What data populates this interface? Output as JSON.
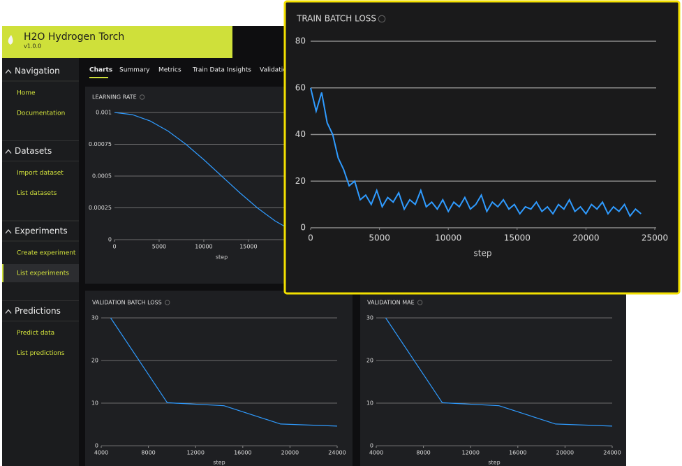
{
  "app": {
    "title": "H2O Hydrogen Torch",
    "version": "v1.0.0"
  },
  "sidebar": [
    {
      "heading": "Navigation",
      "items": [
        "Home",
        "Documentation"
      ]
    },
    {
      "heading": "Datasets",
      "items": [
        "Import dataset",
        "List datasets"
      ]
    },
    {
      "heading": "Experiments",
      "items": [
        "Create experiment",
        "List experiments"
      ]
    },
    {
      "heading": "Predictions",
      "items": [
        "Predict data",
        "List predictions"
      ]
    }
  ],
  "tabs": [
    "Charts",
    "Summary",
    "Metrics",
    "Train Data Insights",
    "Validation"
  ],
  "chart_data": [
    {
      "type": "line",
      "title": "LEARNING RATE",
      "x_label": "step",
      "color": "#2f9bff",
      "x": [
        0,
        2000,
        4000,
        6000,
        8000,
        10000,
        12000,
        14000,
        16000,
        18000,
        20000,
        22000,
        24000
      ],
      "values": [
        0.001,
        0.000983,
        0.000933,
        0.000854,
        0.00075,
        0.000629,
        0.0005,
        0.000371,
        0.00025,
        0.000146,
        6.7e-05,
        1.7e-05,
        0
      ],
      "xlim": [
        0,
        24000
      ],
      "ylim": [
        0,
        0.001
      ],
      "xticks": [
        0,
        5000,
        10000,
        15000
      ],
      "yticks": [
        0,
        0.00025,
        0.0005,
        0.00075,
        0.001
      ]
    },
    {
      "type": "line",
      "title": "TRAIN BATCH LOSS",
      "x_label": "step",
      "color": "#2f9bff",
      "x": [
        0,
        400,
        800,
        1200,
        1600,
        2000,
        2400,
        2800,
        3200,
        3600,
        4000,
        4400,
        4800,
        5200,
        5600,
        6000,
        6400,
        6800,
        7200,
        7600,
        8000,
        8400,
        8800,
        9200,
        9600,
        10000,
        10400,
        10800,
        11200,
        11600,
        12000,
        12400,
        12800,
        13200,
        13600,
        14000,
        14400,
        14800,
        15200,
        15600,
        16000,
        16400,
        16800,
        17200,
        17600,
        18000,
        18400,
        18800,
        19200,
        19600,
        20000,
        20400,
        20800,
        21200,
        21600,
        22000,
        22400,
        22800,
        23200,
        23600,
        24000
      ],
      "values": [
        60,
        50,
        58,
        45,
        40,
        30,
        25,
        18,
        20,
        12,
        14,
        10,
        16,
        9,
        13,
        11,
        15,
        8,
        12,
        10,
        16,
        9,
        11,
        8,
        12,
        7,
        11,
        9,
        13,
        8,
        10,
        14,
        7,
        11,
        9,
        12,
        8,
        10,
        6,
        9,
        8,
        11,
        7,
        9,
        6,
        10,
        8,
        12,
        7,
        9,
        6,
        10,
        8,
        11,
        6,
        9,
        7,
        10,
        5,
        8,
        6
      ],
      "xlim": [
        0,
        25000
      ],
      "ylim": [
        0,
        80
      ],
      "xticks": [
        0,
        5000,
        10000,
        15000,
        20000,
        25000
      ],
      "yticks": [
        0,
        20,
        40,
        60,
        80
      ]
    },
    {
      "type": "line",
      "title": "VALIDATION BATCH LOSS",
      "x_label": "step",
      "color": "#2f9bff",
      "x": [
        4800,
        9600,
        14400,
        19200,
        24000
      ],
      "values": [
        30,
        10.1,
        9.4,
        5.1,
        4.6
      ],
      "xlim": [
        4000,
        24000
      ],
      "ylim": [
        0,
        30
      ],
      "xticks": [
        4000,
        8000,
        12000,
        16000,
        20000,
        24000
      ],
      "yticks": [
        0,
        10,
        20,
        30
      ]
    },
    {
      "type": "line",
      "title": "VALIDATION MAE",
      "x_label": "step",
      "color": "#2f9bff",
      "x": [
        4800,
        9600,
        14400,
        19200,
        24000
      ],
      "values": [
        30,
        10.1,
        9.4,
        5.1,
        4.6
      ],
      "xlim": [
        4000,
        24000
      ],
      "ylim": [
        0,
        30
      ],
      "xticks": [
        4000,
        8000,
        12000,
        16000,
        20000,
        24000
      ],
      "yticks": [
        0,
        10,
        20,
        30
      ]
    }
  ]
}
